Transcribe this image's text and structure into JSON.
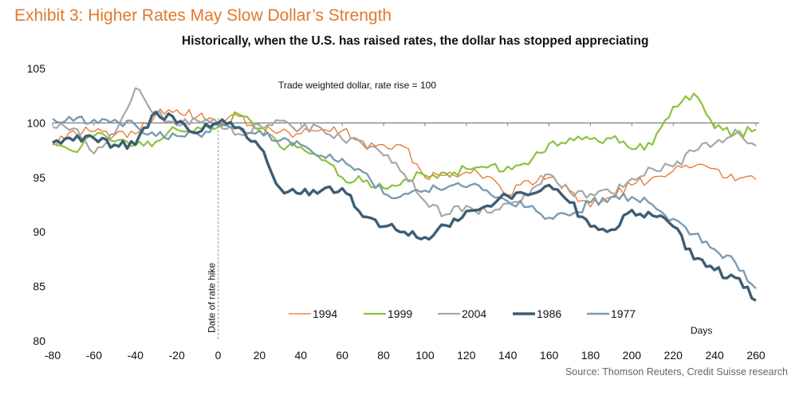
{
  "header": {
    "exhibit_title": "Exhibit 3: Higher Rates May Slow Dollar’s Strength",
    "subtitle": "Historically, when the U.S. has raised rates, the dollar has stopped appreciating"
  },
  "footer": {
    "source": "Source: Thomson Reuters, Credit Suisse research"
  },
  "chart_data": {
    "type": "line",
    "title": "Historically, when the U.S. has raised rates, the dollar has stopped appreciating",
    "annotation": "Trade weighted dollar, rate rise = 100",
    "vline_label": "Date of rate hike",
    "vline_x": 0,
    "xlabel": "Days",
    "ylabel": "",
    "xlim": [
      -80,
      260
    ],
    "ylim": [
      80,
      105
    ],
    "x_ticks": [
      -80,
      -60,
      -40,
      -20,
      0,
      20,
      40,
      60,
      80,
      100,
      120,
      140,
      160,
      180,
      200,
      220,
      240,
      260
    ],
    "y_ticks": [
      80,
      85,
      90,
      95,
      100,
      105
    ],
    "baseline": 100,
    "grid": false,
    "legend_position": "bottom-center",
    "x": [
      -80,
      -70,
      -60,
      -50,
      -40,
      -30,
      -20,
      -10,
      0,
      10,
      20,
      30,
      40,
      50,
      60,
      70,
      80,
      90,
      100,
      110,
      120,
      130,
      140,
      150,
      160,
      170,
      180,
      190,
      200,
      210,
      220,
      230,
      240,
      250,
      260
    ],
    "series": [
      {
        "name": "1994",
        "color": "#E8742A",
        "values": [
          98.0,
          99.3,
          99.2,
          98.9,
          99.0,
          100.8,
          101.2,
          100.6,
          100.0,
          100.6,
          99.3,
          99.2,
          99.0,
          99.4,
          99.3,
          98.0,
          98.0,
          97.8,
          95.0,
          95.2,
          95.5,
          95.1,
          93.4,
          94.7,
          95.0,
          93.8,
          92.3,
          93.2,
          94.3,
          95.0,
          95.6,
          96.0,
          95.8,
          94.7,
          94.8
        ]
      },
      {
        "name": "1999",
        "color": "#8CC23F",
        "values": [
          98.2,
          97.4,
          98.8,
          98.3,
          98.0,
          98.3,
          99.4,
          99.6,
          99.6,
          100.8,
          99.5,
          97.8,
          97.8,
          96.6,
          95.0,
          94.6,
          94.0,
          94.8,
          95.2,
          95.4,
          95.8,
          95.9,
          96.0,
          96.2,
          98.1,
          98.6,
          98.5,
          98.6,
          97.6,
          98.0,
          101.5,
          102.7,
          99.5,
          99.0,
          99.4
        ]
      },
      {
        "name": "2004",
        "color": "#A7A7A7",
        "values": [
          99.6,
          99.5,
          97.2,
          99.0,
          103.2,
          101.0,
          99.8,
          100.2,
          100.0,
          99.0,
          99.8,
          100.2,
          99.5,
          99.5,
          98.5,
          98.3,
          97.0,
          95.3,
          92.8,
          91.6,
          92.4,
          91.8,
          92.6,
          93.3,
          95.3,
          93.7,
          93.5,
          93.6,
          94.9,
          95.8,
          96.0,
          97.4,
          98.1,
          99.4,
          97.9
        ]
      },
      {
        "name": "1986",
        "color": "#3D5E74",
        "values": [
          98.2,
          98.4,
          98.6,
          98.0,
          98.0,
          101.0,
          100.0,
          99.1,
          100.0,
          99.6,
          97.8,
          94.0,
          93.5,
          93.8,
          94.0,
          91.4,
          90.5,
          90.0,
          89.5,
          90.6,
          91.9,
          92.4,
          93.3,
          93.4,
          94.3,
          92.7,
          90.5,
          90.2,
          92.0,
          91.5,
          90.5,
          87.5,
          86.5,
          85.8,
          83.7
        ]
      },
      {
        "name": "1977",
        "color": "#7B9BAF",
        "values": [
          100.4,
          100.2,
          100.3,
          100.3,
          99.8,
          98.8,
          98.8,
          99.0,
          99.8,
          99.6,
          99.3,
          98.4,
          98.0,
          97.0,
          96.7,
          95.5,
          93.5,
          93.5,
          93.8,
          94.0,
          94.1,
          93.8,
          92.8,
          92.3,
          91.3,
          91.5,
          92.7,
          93.2,
          93.2,
          92.5,
          91.2,
          89.8,
          88.4,
          87.2,
          84.8
        ]
      }
    ]
  }
}
